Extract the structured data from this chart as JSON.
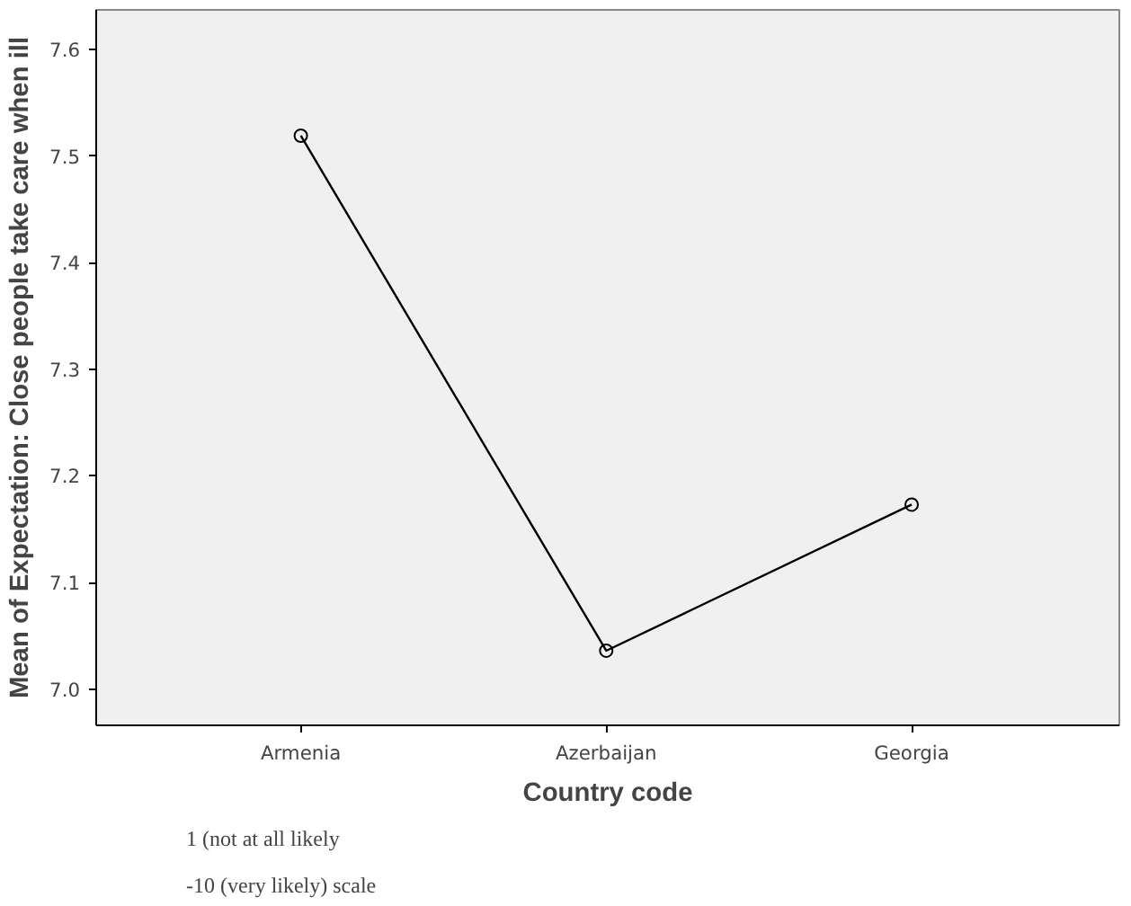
{
  "chart_data": {
    "type": "line",
    "xlabel": "Country code",
    "ylabel": "Mean of Expectation: Close people take care when ill",
    "categories": [
      "Armenia",
      "Azerbaijan",
      "Georgia"
    ],
    "series": [
      {
        "color": "#000000",
        "values": [
          7.519,
          7.036,
          7.173
        ]
      }
    ],
    "marker": "circle",
    "line_style": "solid",
    "grid": false,
    "ylim": [
      6.966,
      7.637
    ],
    "yticks": [
      {
        "value": 7.0,
        "label": "7.0"
      },
      {
        "value": 7.1,
        "label": "7.1"
      },
      {
        "value": 7.2,
        "label": "7.2"
      },
      {
        "value": 7.3,
        "label": "7.3"
      },
      {
        "value": 7.4,
        "label": "7.4"
      },
      {
        "value": 7.5,
        "label": "7.5"
      },
      {
        "value": 7.6,
        "label": "7.6"
      }
    ],
    "annotations": [
      "1 (not at all likely",
      "-10 (very likely) scale"
    ]
  }
}
